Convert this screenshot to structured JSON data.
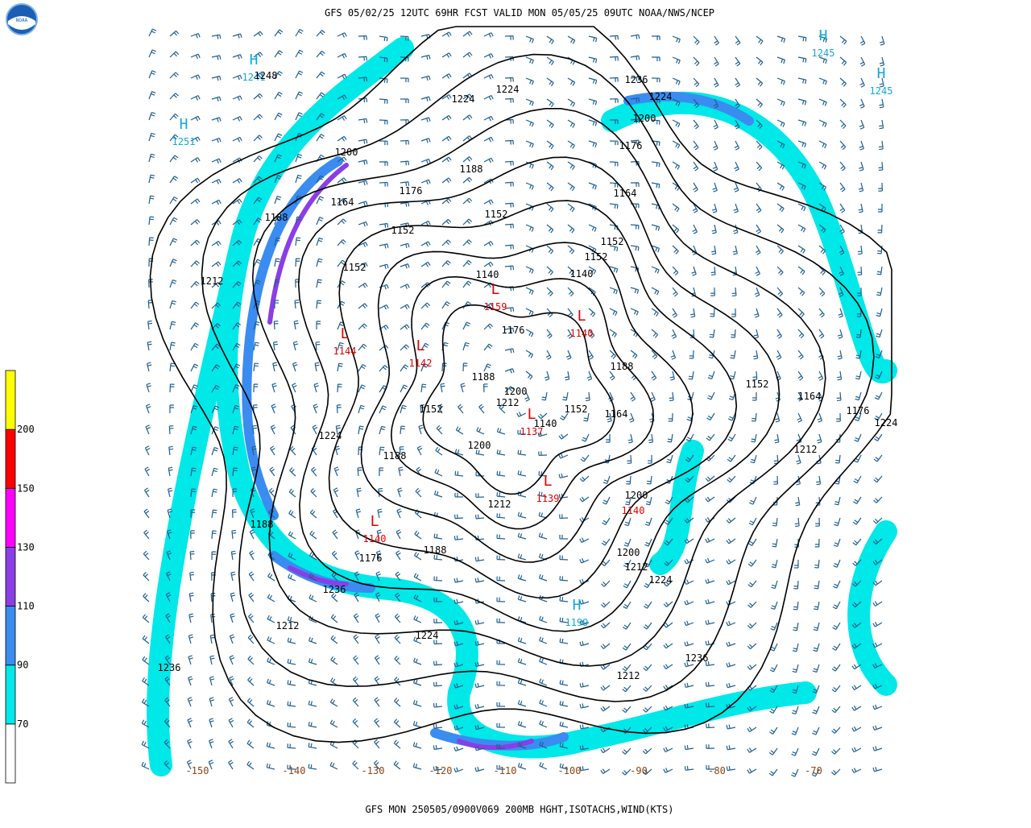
{
  "title": "GFS 05/02/25 12UTC 69HR FCST VALID MON 05/05/25 09UTC NOAA/NWS/NCEP",
  "footer": "GFS MON 250505/0900V069 200MB HGHT,ISOTACHS,WIND(KTS)",
  "logo": "NOAA",
  "colorbar": {
    "levels": [
      70,
      90,
      110,
      130,
      150,
      200
    ],
    "colors": [
      "#ffffff",
      "#00e8e8",
      "#3a8cf0",
      "#8a3ee6",
      "#ff00ff",
      "#ff0000",
      "#ffff00"
    ]
  },
  "centers": [
    {
      "symbol": "H",
      "value": "1245"
    },
    {
      "symbol": "H",
      "value": "1245"
    },
    {
      "symbol": "H",
      "value": "1241"
    },
    {
      "symbol": "H",
      "value": "1251"
    },
    {
      "symbol": "L",
      "value": "1159"
    },
    {
      "symbol": "L",
      "value": "1140"
    },
    {
      "symbol": "L",
      "value": "1144"
    },
    {
      "symbol": "L",
      "value": "1142"
    },
    {
      "symbol": "L",
      "value": "1137"
    },
    {
      "symbol": "L",
      "value": "1139"
    },
    {
      "symbol": "L",
      "value": "1140"
    },
    {
      "symbol": "H",
      "value": "1199"
    }
  ],
  "extra_red_labels": [
    "1140"
  ],
  "contour_labels": [
    "1248",
    "1224",
    "1224",
    "1236",
    "1224",
    "1212",
    "1200",
    "1200",
    "1188",
    "1188",
    "1176",
    "1176",
    "1164",
    "1164",
    "1152",
    "1152",
    "1152",
    "1152",
    "1152",
    "1140",
    "1140",
    "1176",
    "1188",
    "1200",
    "1212",
    "1188",
    "1152",
    "1164",
    "1176",
    "1212",
    "1152",
    "1152",
    "1140",
    "1164",
    "1200",
    "1188",
    "1224",
    "1212",
    "1200",
    "1188",
    "1176",
    "1188",
    "1200",
    "1212",
    "1224",
    "1236",
    "1212",
    "1224",
    "1224",
    "1236",
    "1236",
    "1212"
  ],
  "longitude_labels": [
    "-150",
    "-140",
    "-130",
    "-120",
    "-110",
    "-100",
    "-90",
    "-80",
    "-70"
  ]
}
